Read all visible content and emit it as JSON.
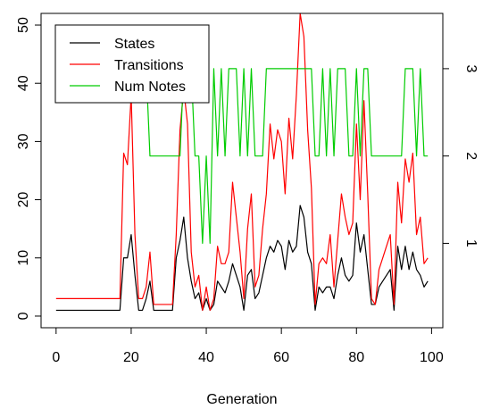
{
  "chart_data": {
    "type": "line",
    "xlabel": "Generation",
    "ylabel": "",
    "y2label": "",
    "xlim": [
      -4,
      103
    ],
    "ylim": [
      -2,
      52
    ],
    "y2lim": [
      0.0333,
      3.633
    ],
    "x_ticks": [
      0,
      20,
      40,
      60,
      80,
      100
    ],
    "y_ticks": [
      0,
      10,
      20,
      30,
      40,
      50
    ],
    "y2_ticks": [
      1,
      2,
      3
    ],
    "legend_position": "top-left",
    "series": [
      {
        "name": "States",
        "axis": "left",
        "color": "#000000",
        "x": [
          0,
          17,
          18,
          19,
          20,
          21,
          22,
          23,
          24,
          25,
          26,
          27,
          28,
          29,
          30,
          31,
          32,
          33,
          34,
          35,
          36,
          37,
          38,
          39,
          40,
          41,
          42,
          43,
          44,
          45,
          46,
          47,
          48,
          49,
          50,
          51,
          52,
          53,
          54,
          55,
          56,
          57,
          58,
          59,
          60,
          61,
          62,
          63,
          64,
          65,
          66,
          67,
          68,
          69,
          70,
          71,
          72,
          73,
          74,
          75,
          76,
          77,
          78,
          79,
          80,
          81,
          82,
          83,
          84,
          85,
          86,
          87,
          88,
          89,
          90,
          91,
          92,
          93,
          94,
          95,
          96,
          97,
          98,
          99
        ],
        "y": [
          1,
          1,
          10,
          10,
          14,
          7,
          1,
          1,
          3,
          6,
          1,
          1,
          1,
          1,
          1,
          1,
          10,
          13,
          17,
          10,
          6,
          3,
          4,
          1,
          3,
          1,
          2,
          6,
          5,
          4,
          6,
          9,
          7,
          5,
          1,
          7,
          8,
          3,
          4,
          7,
          10,
          12,
          11,
          13,
          12,
          8,
          13,
          11,
          12,
          19,
          17,
          11,
          9,
          1,
          5,
          4,
          5,
          5,
          3,
          7,
          10,
          7,
          6,
          7,
          16,
          11,
          14,
          8,
          2,
          2,
          5,
          6,
          7,
          8,
          1,
          12,
          8,
          12,
          8,
          11,
          8,
          7,
          5,
          6
        ]
      },
      {
        "name": "Transitions",
        "axis": "left",
        "color": "#ff0000",
        "x": [
          0,
          17,
          18,
          19,
          20,
          21,
          22,
          23,
          24,
          25,
          26,
          27,
          28,
          29,
          30,
          31,
          32,
          33,
          34,
          35,
          36,
          37,
          38,
          39,
          40,
          41,
          42,
          43,
          44,
          45,
          46,
          47,
          48,
          49,
          50,
          51,
          52,
          53,
          54,
          55,
          56,
          57,
          58,
          59,
          60,
          61,
          62,
          63,
          64,
          65,
          66,
          67,
          68,
          69,
          70,
          71,
          72,
          73,
          74,
          75,
          76,
          77,
          78,
          79,
          80,
          81,
          82,
          83,
          84,
          85,
          86,
          87,
          88,
          89,
          90,
          91,
          92,
          93,
          94,
          95,
          96,
          97,
          98,
          99
        ],
        "y": [
          3,
          3,
          28,
          26,
          38,
          14,
          3,
          3,
          5,
          11,
          2,
          2,
          2,
          2,
          2,
          2,
          14,
          32,
          39,
          33,
          11,
          5,
          7,
          1,
          5,
          1,
          3,
          12,
          9,
          9,
          11,
          23,
          17,
          11,
          3,
          15,
          21,
          5,
          7,
          15,
          21,
          33,
          27,
          32,
          30,
          21,
          34,
          27,
          38,
          52,
          48,
          32,
          22,
          2,
          9,
          10,
          9,
          14,
          5,
          13,
          21,
          17,
          14,
          16,
          33,
          20,
          37,
          21,
          3,
          2,
          8,
          10,
          12,
          14,
          2,
          23,
          16,
          27,
          23,
          28,
          14,
          17,
          9,
          10
        ]
      },
      {
        "name": "Num Notes",
        "axis": "right",
        "color": "#00cc00",
        "x": [
          0,
          24,
          25,
          33,
          34,
          36,
          37,
          38,
          39,
          40,
          41,
          42,
          43,
          44,
          45,
          46,
          47,
          48,
          49,
          50,
          51,
          52,
          53,
          54,
          55,
          56,
          57,
          58,
          59,
          60,
          61,
          62,
          63,
          64,
          65,
          66,
          67,
          68,
          69,
          70,
          71,
          72,
          73,
          74,
          75,
          76,
          77,
          78,
          79,
          80,
          81,
          82,
          83,
          84,
          85,
          86,
          87,
          88,
          89,
          90,
          91,
          92,
          93,
          94,
          95,
          96,
          97,
          98,
          99
        ],
        "y": [
          3,
          3,
          2,
          2,
          3,
          3,
          2,
          2,
          1,
          2,
          1,
          3,
          2,
          3,
          2,
          3,
          3,
          3,
          2,
          3,
          2,
          3,
          2,
          2,
          2,
          3,
          3,
          3,
          3,
          3,
          3,
          3,
          3,
          3,
          3,
          3,
          3,
          3,
          2,
          2,
          3,
          2,
          3,
          2,
          3,
          3,
          3,
          2,
          2,
          3,
          2,
          3,
          3,
          2,
          2,
          2,
          2,
          2,
          2,
          2,
          2,
          2,
          3,
          3,
          3,
          2,
          3,
          2,
          2
        ]
      }
    ]
  }
}
